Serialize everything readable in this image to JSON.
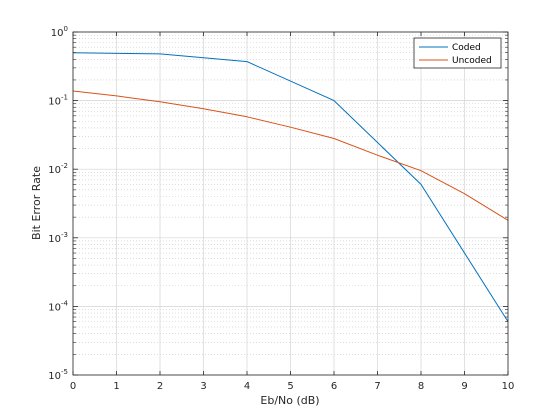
{
  "chart_data": {
    "type": "line",
    "title": "",
    "xlabel": "Eb/No (dB)",
    "ylabel": "Bit Error Rate",
    "xlim": [
      0,
      10
    ],
    "ylim": [
      1e-05,
      1
    ],
    "yscale": "log",
    "grid": true,
    "minor_grid": true,
    "legend_position": "top-right",
    "x_ticks": [
      0,
      1,
      2,
      3,
      4,
      5,
      6,
      7,
      8,
      9,
      10
    ],
    "y_ticks": [
      {
        "value": 1,
        "base": "10",
        "exp": "0"
      },
      {
        "value": 0.1,
        "base": "10",
        "exp": "-1"
      },
      {
        "value": 0.01,
        "base": "10",
        "exp": "-2"
      },
      {
        "value": 0.001,
        "base": "10",
        "exp": "-3"
      },
      {
        "value": 0.0001,
        "base": "10",
        "exp": "-4"
      },
      {
        "value": 1e-05,
        "base": "10",
        "exp": "-5"
      }
    ],
    "series": [
      {
        "name": "Coded",
        "color": "#0072bd",
        "x": [
          0,
          2,
          4,
          6,
          8,
          10
        ],
        "values": [
          0.5,
          0.48,
          0.37,
          0.1,
          0.006,
          6e-05
        ]
      },
      {
        "name": "Uncoded",
        "color": "#d95319",
        "x": [
          0,
          1,
          2,
          3,
          4,
          5,
          6,
          7,
          8,
          9,
          10
        ],
        "values": [
          0.138,
          0.117,
          0.096,
          0.076,
          0.058,
          0.041,
          0.028,
          0.016,
          0.0095,
          0.0044,
          0.0018
        ]
      }
    ]
  }
}
